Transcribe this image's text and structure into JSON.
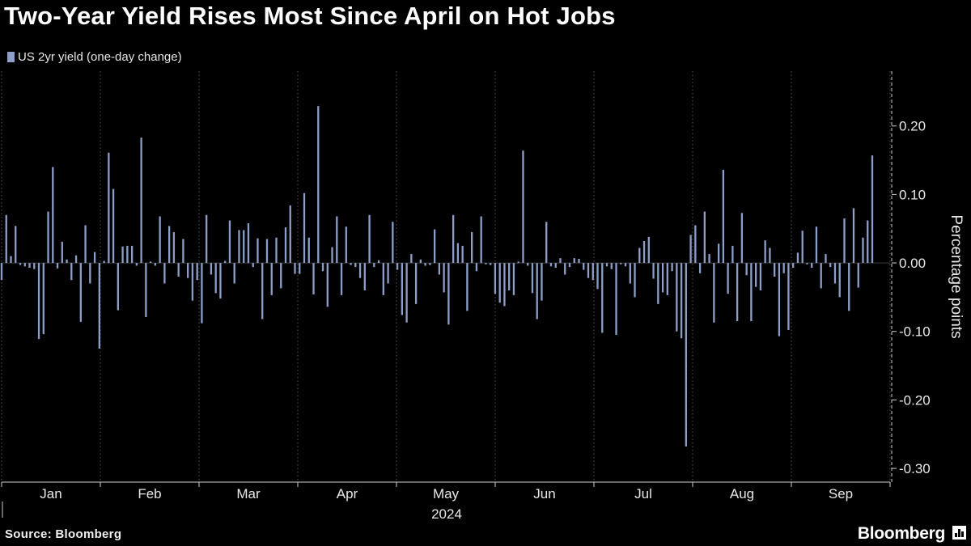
{
  "title": "Two-Year Yield Rises Most Since April on Hot Jobs",
  "legend": {
    "label": "US 2yr yield (one-day change)",
    "color": "#8d9fc8"
  },
  "source": "Source: Bloomberg",
  "brand": "Bloomberg",
  "chart_data": {
    "type": "bar",
    "title": "Two-Year Yield Rises Most Since April on Hot Jobs",
    "xlabel": "2024",
    "ylabel": "Percentage points",
    "ylim": [
      -0.32,
      0.28
    ],
    "yticks": [
      -0.3,
      -0.2,
      -0.1,
      0.0,
      0.1,
      0.2
    ],
    "ytick_labels": [
      "-0.30",
      "-0.20",
      "-0.10",
      "0.00",
      "0.10",
      "0.20"
    ],
    "xaxis": {
      "months": [
        "Jan",
        "Feb",
        "Mar",
        "Apr",
        "May",
        "Jun",
        "Jul",
        "Aug",
        "Sep"
      ],
      "year_label": "2024"
    },
    "grid": {
      "vertical_dotted": true,
      "horizontal": false
    },
    "series": [
      {
        "name": "US 2yr yield (one-day change)",
        "color": "#8d9fc8",
        "values": [
          -0.025,
          0.07,
          0.01,
          0.054,
          -0.003,
          -0.005,
          -0.007,
          -0.009,
          -0.111,
          -0.104,
          0.075,
          0.14,
          -0.008,
          0.031,
          0.005,
          -0.025,
          0.011,
          -0.086,
          0.055,
          -0.03,
          0.016,
          -0.125,
          0.003,
          0.161,
          0.108,
          -0.069,
          0.024,
          0.025,
          0.025,
          -0.004,
          0.183,
          -0.079,
          0.002,
          -0.004,
          0.068,
          -0.03,
          0.054,
          0.045,
          -0.02,
          0.035,
          -0.022,
          -0.055,
          -0.025,
          -0.088,
          0.07,
          -0.017,
          -0.044,
          -0.052,
          0.003,
          0.062,
          -0.03,
          0.048,
          0.048,
          0.058,
          -0.006,
          0.036,
          -0.082,
          0.035,
          -0.047,
          0.037,
          -0.037,
          0.052,
          0.084,
          -0.016,
          -0.016,
          0.102,
          0.037,
          -0.046,
          0.229,
          -0.012,
          -0.064,
          0.023,
          0.068,
          -0.047,
          0.053,
          -0.003,
          -0.006,
          -0.022,
          -0.04,
          0.07,
          -0.006,
          0.004,
          -0.047,
          -0.03,
          0.06,
          -0.01,
          -0.076,
          -0.087,
          0.013,
          -0.06,
          0.005,
          -0.004,
          -0.003,
          0.049,
          -0.017,
          -0.043,
          -0.09,
          0.07,
          0.029,
          0.025,
          -0.07,
          0.045,
          -0.012,
          0.068,
          -0.002,
          -0.003,
          -0.045,
          -0.058,
          -0.063,
          -0.04,
          -0.047,
          0.002,
          0.164,
          -0.004,
          -0.044,
          -0.082,
          -0.055,
          0.06,
          -0.005,
          -0.007,
          0.007,
          -0.017,
          -0.006,
          0.007,
          0.006,
          -0.01,
          -0.022,
          -0.025,
          -0.038,
          -0.102,
          -0.005,
          -0.009,
          -0.105,
          -0.002,
          -0.005,
          -0.03,
          -0.05,
          0.022,
          0.032,
          0.038,
          -0.023,
          -0.06,
          -0.043,
          -0.047,
          -0.012,
          -0.1,
          -0.11,
          -0.268,
          0.041,
          0.055,
          -0.015,
          0.075,
          0.013,
          -0.087,
          0.028,
          0.136,
          -0.045,
          0.025,
          -0.085,
          0.073,
          -0.018,
          -0.085,
          -0.035,
          -0.04,
          0.033,
          0.022,
          -0.02,
          -0.107,
          -0.015,
          -0.098,
          -0.007,
          0.015,
          0.047,
          -0.002,
          -0.007,
          0.053,
          -0.037,
          0.013,
          -0.006,
          -0.03,
          -0.05,
          0.065,
          -0.07,
          0.08,
          -0.036,
          0.037,
          0.062,
          0.157
        ]
      }
    ]
  }
}
